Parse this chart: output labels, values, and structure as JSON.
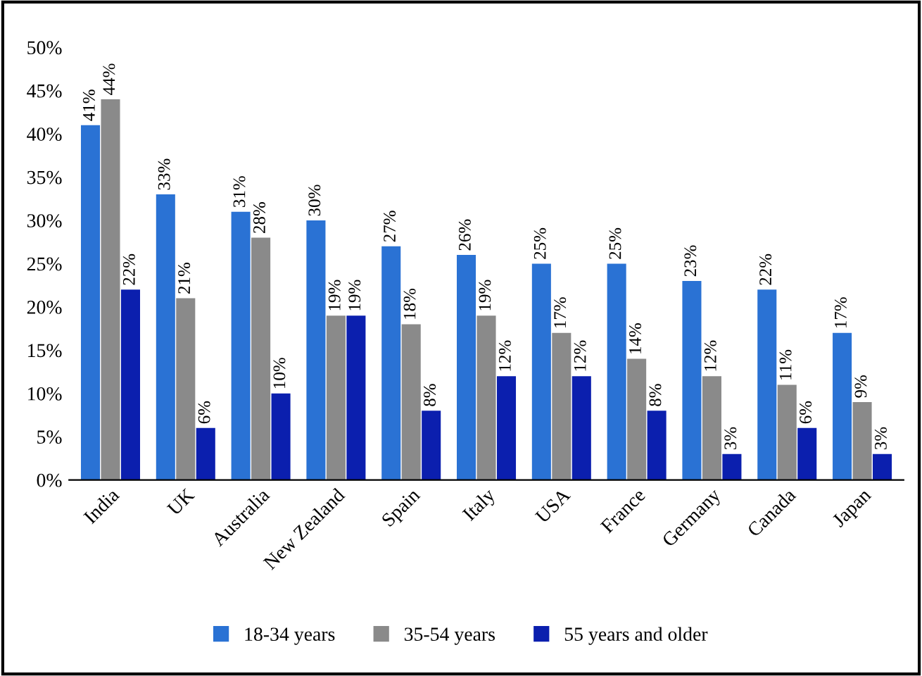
{
  "chart_data": {
    "type": "bar",
    "categories": [
      "India",
      "UK",
      "Australia",
      "New Zealand",
      "Spain",
      "Italy",
      "USA",
      "France",
      "Germany",
      "Canada",
      "Japan"
    ],
    "series": [
      {
        "name": "18-34 years",
        "color": "#2a72d4",
        "values": [
          41,
          33,
          31,
          30,
          27,
          26,
          25,
          25,
          23,
          22,
          17
        ],
        "value_labels": [
          "41%",
          "33%",
          "31%",
          "30%",
          "27%",
          "26%",
          "25%",
          "25%",
          "23%",
          "22%",
          "17%"
        ]
      },
      {
        "name": "35-54 years",
        "color": "#8a8a8a",
        "values": [
          44,
          21,
          28,
          19,
          18,
          19,
          17,
          14,
          12,
          11,
          9
        ],
        "value_labels": [
          "44%",
          "21%",
          "28%",
          "19%",
          "18%",
          "19%",
          "17%",
          "14%",
          "12%",
          "11%",
          "9%"
        ]
      },
      {
        "name": "55 years and older",
        "color": "#0b1fae",
        "values": [
          22,
          6,
          10,
          19,
          8,
          12,
          12,
          8,
          3,
          6,
          3
        ],
        "value_labels": [
          "22%",
          "6%",
          "10%",
          "19%",
          "8%",
          "12%",
          "12%",
          "8%",
          "3%",
          "6%",
          "3%"
        ]
      }
    ],
    "ylim": [
      0,
      50
    ],
    "yticks": [
      {
        "value": 0,
        "label": "0%"
      },
      {
        "value": 5,
        "label": "5%"
      },
      {
        "value": 10,
        "label": "10%"
      },
      {
        "value": 15,
        "label": "15%"
      },
      {
        "value": 20,
        "label": "20%"
      },
      {
        "value": 25,
        "label": "25%"
      },
      {
        "value": 30,
        "label": "30%"
      },
      {
        "value": 35,
        "label": "35%"
      },
      {
        "value": 40,
        "label": "40%"
      },
      {
        "value": 45,
        "label": "45%"
      },
      {
        "value": 50,
        "label": "50%"
      }
    ],
    "grid": false,
    "legend": "bottom"
  }
}
